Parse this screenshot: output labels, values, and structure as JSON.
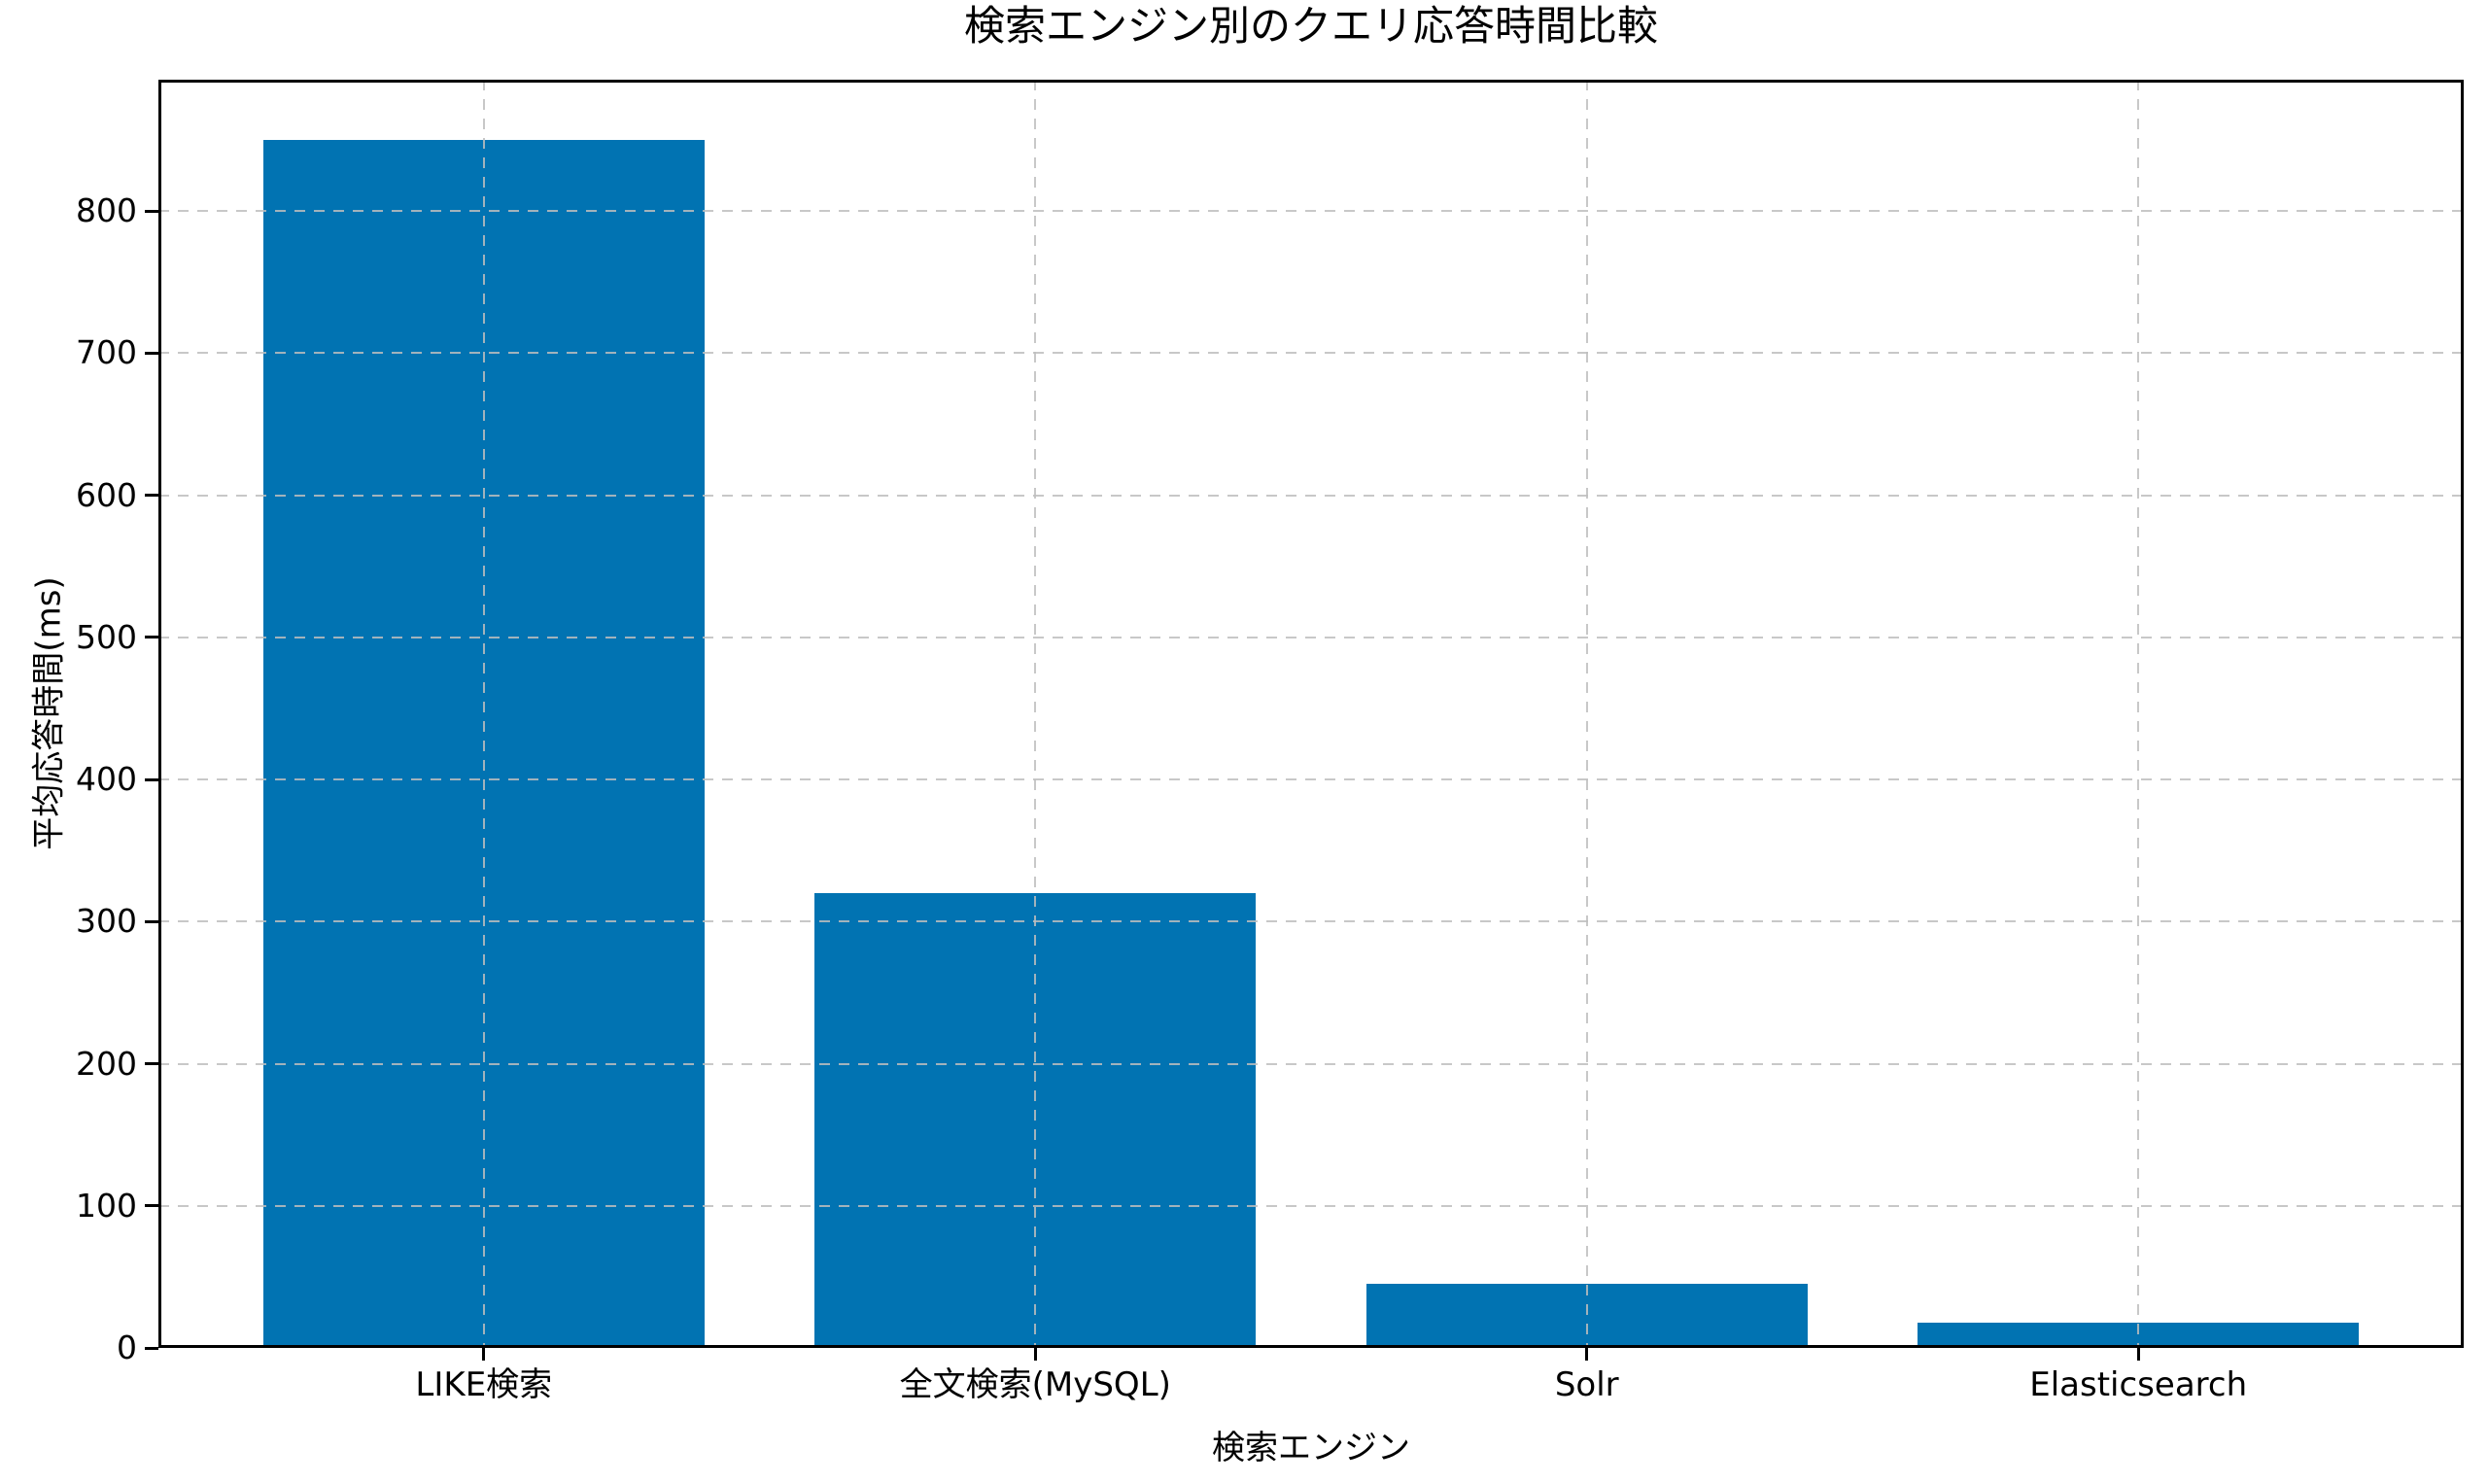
{
  "chart_data": {
    "type": "bar",
    "title": "検索エンジン別のクエリ応答時間比較",
    "xlabel": "検索エンジン",
    "ylabel": "平均応答時間(ms)",
    "categories": [
      "LIKE検索",
      "全文検索(MySQL)",
      "Solr",
      "Elasticsearch"
    ],
    "values": [
      850,
      320,
      45,
      18
    ],
    "yticks": [
      0,
      100,
      200,
      300,
      400,
      500,
      600,
      700,
      800
    ],
    "ylim": [
      0,
      892.5
    ],
    "xlim": [
      -0.59,
      3.59
    ],
    "bar_width": 0.8,
    "grid": true,
    "grid_style": "dashed",
    "grid_above_bars": true,
    "legend": false,
    "bar_color": "#0173B2",
    "grid_color": "#c9c9c9",
    "spine_color": "#000000",
    "text_color": "#000000",
    "background_color": "#ffffff"
  }
}
